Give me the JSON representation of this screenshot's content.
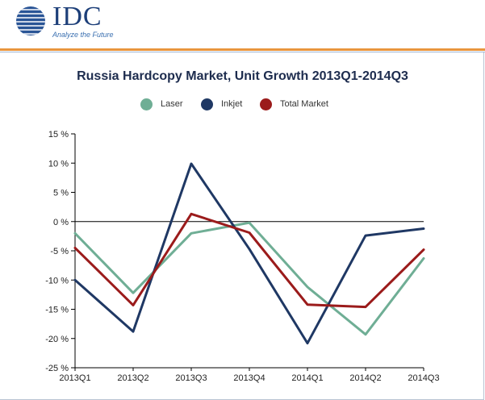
{
  "brand": {
    "name": "IDC",
    "tagline": "Analyze the Future",
    "mark_icon": "globe-icon"
  },
  "colors": {
    "brand": "#1d3f79",
    "rule": "#e9953d",
    "laser": "#6fae95",
    "inkjet": "#1f3864",
    "total": "#9b1b1b"
  },
  "chart_data": {
    "type": "line",
    "title": "Russia Hardcopy Market, Unit Growth 2013Q1-2014Q3",
    "xlabel": "",
    "ylabel": "",
    "categories": [
      "2013Q1",
      "2013Q2",
      "2013Q3",
      "2013Q4",
      "2014Q1",
      "2014Q2",
      "2014Q3"
    ],
    "ylim": [
      -25,
      15
    ],
    "yticks": [
      15,
      10,
      5,
      0,
      -5,
      -10,
      -15,
      -20,
      -25
    ],
    "ytick_labels": [
      "15 %",
      "10 %",
      "5 %",
      "0 %",
      "-5 %",
      "-10 %",
      "-15 %",
      "-20 %",
      "-25 %"
    ],
    "grid": false,
    "legend_position": "top",
    "series": [
      {
        "name": "Laser",
        "color": "#6fae95",
        "values": [
          -2.0,
          -12.2,
          -2.0,
          -0.2,
          -11.2,
          -19.3,
          -6.3
        ]
      },
      {
        "name": "Inkjet",
        "color": "#1f3864",
        "values": [
          -10.0,
          -18.8,
          9.9,
          -4.7,
          -20.8,
          -2.4,
          -1.2
        ]
      },
      {
        "name": "Total Market",
        "color": "#9b1b1b",
        "values": [
          -4.5,
          -14.3,
          1.3,
          -1.9,
          -14.2,
          -14.6,
          -4.8
        ]
      }
    ]
  }
}
